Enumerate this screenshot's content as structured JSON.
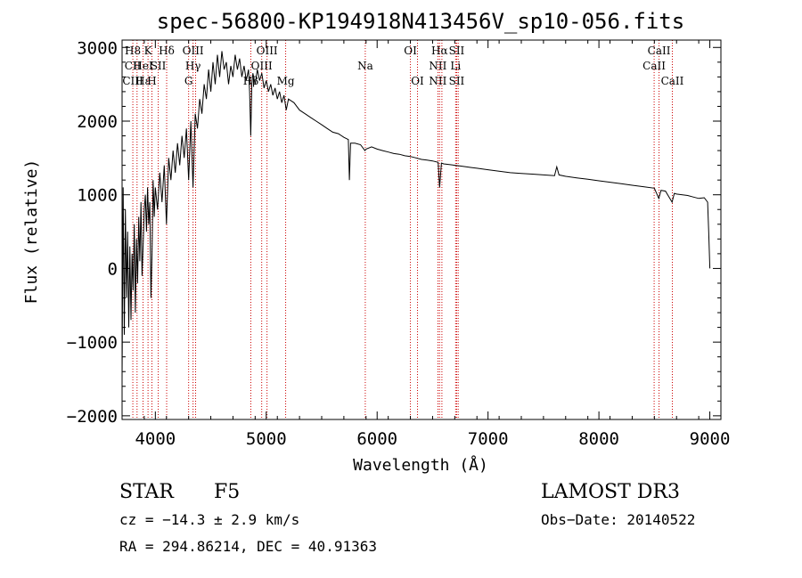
{
  "chart_data": {
    "type": "line",
    "title": "spec-56800-KP194918N413456V_sp10-056.fits",
    "xlabel": "Wavelength (Å)",
    "ylabel": "Flux (relative)",
    "xlim": [
      3700,
      9100
    ],
    "ylim": [
      -2050,
      3100
    ],
    "xticks": [
      4000,
      5000,
      6000,
      7000,
      8000,
      9000
    ],
    "yticks": [
      -2000,
      -1000,
      0,
      1000,
      2000,
      3000
    ],
    "grid": false,
    "line_color": "#000000",
    "marker_color": "#cc0000",
    "spectrum_points": [
      [
        3700,
        -1500
      ],
      [
        3710,
        1100
      ],
      [
        3720,
        -900
      ],
      [
        3730,
        800
      ],
      [
        3740,
        -400
      ],
      [
        3750,
        500
      ],
      [
        3760,
        -800
      ],
      [
        3770,
        300
      ],
      [
        3780,
        -700
      ],
      [
        3790,
        200
      ],
      [
        3800,
        -300
      ],
      [
        3810,
        600
      ],
      [
        3820,
        -600
      ],
      [
        3830,
        400
      ],
      [
        3840,
        -200
      ],
      [
        3850,
        700
      ],
      [
        3860,
        100
      ],
      [
        3870,
        900
      ],
      [
        3880,
        -100
      ],
      [
        3890,
        300
      ],
      [
        3900,
        800
      ],
      [
        3910,
        1000
      ],
      [
        3920,
        500
      ],
      [
        3930,
        1100
      ],
      [
        3940,
        600
      ],
      [
        3950,
        900
      ],
      [
        3960,
        -400
      ],
      [
        3970,
        200
      ],
      [
        3980,
        1200
      ],
      [
        3990,
        700
      ],
      [
        4000,
        1100
      ],
      [
        4020,
        800
      ],
      [
        4040,
        1300
      ],
      [
        4060,
        900
      ],
      [
        4080,
        1400
      ],
      [
        4100,
        600
      ],
      [
        4120,
        1500
      ],
      [
        4140,
        1200
      ],
      [
        4160,
        1600
      ],
      [
        4180,
        1300
      ],
      [
        4200,
        1700
      ],
      [
        4220,
        1400
      ],
      [
        4240,
        1800
      ],
      [
        4260,
        1500
      ],
      [
        4280,
        1900
      ],
      [
        4300,
        1200
      ],
      [
        4320,
        2000
      ],
      [
        4340,
        1100
      ],
      [
        4360,
        2100
      ],
      [
        4380,
        1900
      ],
      [
        4400,
        2300
      ],
      [
        4420,
        2100
      ],
      [
        4440,
        2500
      ],
      [
        4460,
        2300
      ],
      [
        4480,
        2700
      ],
      [
        4500,
        2400
      ],
      [
        4520,
        2800
      ],
      [
        4540,
        2500
      ],
      [
        4560,
        2900
      ],
      [
        4580,
        2600
      ],
      [
        4600,
        2950
      ],
      [
        4620,
        2700
      ],
      [
        4640,
        2800
      ],
      [
        4660,
        2500
      ],
      [
        4680,
        2750
      ],
      [
        4700,
        2600
      ],
      [
        4720,
        2900
      ],
      [
        4740,
        2700
      ],
      [
        4760,
        2850
      ],
      [
        4780,
        2600
      ],
      [
        4800,
        2750
      ],
      [
        4820,
        2550
      ],
      [
        4840,
        2700
      ],
      [
        4850,
        2400
      ],
      [
        4860,
        1800
      ],
      [
        4870,
        2500
      ],
      [
        4880,
        2650
      ],
      [
        4900,
        2500
      ],
      [
        4920,
        2700
      ],
      [
        4940,
        2550
      ],
      [
        4960,
        2650
      ],
      [
        4980,
        2450
      ],
      [
        5000,
        2550
      ],
      [
        5020,
        2400
      ],
      [
        5040,
        2500
      ],
      [
        5060,
        2350
      ],
      [
        5080,
        2450
      ],
      [
        5100,
        2300
      ],
      [
        5120,
        2400
      ],
      [
        5140,
        2250
      ],
      [
        5160,
        2350
      ],
      [
        5180,
        2150
      ],
      [
        5200,
        2300
      ],
      [
        5250,
        2250
      ],
      [
        5300,
        2150
      ],
      [
        5350,
        2100
      ],
      [
        5400,
        2050
      ],
      [
        5450,
        2000
      ],
      [
        5500,
        1950
      ],
      [
        5550,
        1900
      ],
      [
        5600,
        1850
      ],
      [
        5650,
        1830
      ],
      [
        5700,
        1780
      ],
      [
        5740,
        1750
      ],
      [
        5750,
        1200
      ],
      [
        5760,
        1700
      ],
      [
        5800,
        1700
      ],
      [
        5850,
        1680
      ],
      [
        5890,
        1600
      ],
      [
        5900,
        1620
      ],
      [
        5950,
        1650
      ],
      [
        6000,
        1620
      ],
      [
        6050,
        1600
      ],
      [
        6100,
        1580
      ],
      [
        6150,
        1560
      ],
      [
        6200,
        1550
      ],
      [
        6250,
        1530
      ],
      [
        6300,
        1520
      ],
      [
        6350,
        1500
      ],
      [
        6400,
        1480
      ],
      [
        6450,
        1470
      ],
      [
        6500,
        1460
      ],
      [
        6550,
        1440
      ],
      [
        6563,
        1100
      ],
      [
        6580,
        1430
      ],
      [
        6600,
        1420
      ],
      [
        6650,
        1410
      ],
      [
        6700,
        1400
      ],
      [
        6750,
        1390
      ],
      [
        6800,
        1380
      ],
      [
        6850,
        1370
      ],
      [
        6900,
        1360
      ],
      [
        6950,
        1350
      ],
      [
        7000,
        1340
      ],
      [
        7100,
        1320
      ],
      [
        7200,
        1300
      ],
      [
        7300,
        1290
      ],
      [
        7400,
        1280
      ],
      [
        7500,
        1270
      ],
      [
        7600,
        1260
      ],
      [
        7620,
        1380
      ],
      [
        7640,
        1270
      ],
      [
        7700,
        1250
      ],
      [
        7800,
        1230
      ],
      [
        7900,
        1210
      ],
      [
        8000,
        1190
      ],
      [
        8100,
        1170
      ],
      [
        8200,
        1150
      ],
      [
        8300,
        1130
      ],
      [
        8400,
        1110
      ],
      [
        8500,
        1090
      ],
      [
        8540,
        950
      ],
      [
        8560,
        1060
      ],
      [
        8600,
        1050
      ],
      [
        8660,
        900
      ],
      [
        8680,
        1020
      ],
      [
        8700,
        1010
      ],
      [
        8800,
        990
      ],
      [
        8850,
        970
      ],
      [
        8900,
        950
      ],
      [
        8950,
        960
      ],
      [
        8980,
        900
      ],
      [
        8990,
        500
      ],
      [
        9000,
        0
      ]
    ],
    "line_markers": [
      {
        "x": 3797,
        "labels": [
          "H8",
          "CII",
          "CIII"
        ]
      },
      {
        "x": 3835,
        "labels": [
          "",
          "",
          ""
        ]
      },
      {
        "x": 3889,
        "labels": [
          "",
          "HeI",
          "Hε"
        ]
      },
      {
        "x": 3934,
        "labels": [
          "K",
          "",
          ""
        ]
      },
      {
        "x": 3969,
        "labels": [
          "",
          "",
          "H"
        ]
      },
      {
        "x": 4026,
        "labels": [
          "",
          "SII",
          ""
        ]
      },
      {
        "x": 4102,
        "labels": [
          "Hδ",
          "",
          ""
        ]
      },
      {
        "x": 4300,
        "labels": [
          "",
          "",
          "G"
        ]
      },
      {
        "x": 4340,
        "labels": [
          "OIII",
          "Hγ",
          ""
        ]
      },
      {
        "x": 4363,
        "labels": [
          "",
          "",
          ""
        ]
      },
      {
        "x": 4861,
        "labels": [
          "",
          "",
          "Hβ"
        ]
      },
      {
        "x": 4959,
        "labels": [
          "",
          "OIII",
          ""
        ]
      },
      {
        "x": 5007,
        "labels": [
          "OIII",
          "",
          ""
        ]
      },
      {
        "x": 5175,
        "labels": [
          "",
          "",
          "Mg"
        ]
      },
      {
        "x": 5893,
        "labels": [
          "",
          "Na",
          ""
        ]
      },
      {
        "x": 6300,
        "labels": [
          "OI",
          "",
          ""
        ]
      },
      {
        "x": 6364,
        "labels": [
          "",
          "",
          "OI"
        ]
      },
      {
        "x": 6548,
        "labels": [
          "",
          "NII",
          "NII"
        ]
      },
      {
        "x": 6563,
        "labels": [
          "Hα",
          "",
          ""
        ]
      },
      {
        "x": 6584,
        "labels": [
          "",
          "",
          ""
        ]
      },
      {
        "x": 6708,
        "labels": [
          "",
          "Li",
          ""
        ]
      },
      {
        "x": 6717,
        "labels": [
          "SII",
          "",
          "SII"
        ]
      },
      {
        "x": 6731,
        "labels": [
          "",
          "",
          ""
        ]
      },
      {
        "x": 8498,
        "labels": [
          "",
          "CaII",
          ""
        ]
      },
      {
        "x": 8542,
        "labels": [
          "CaII",
          "",
          ""
        ]
      },
      {
        "x": 8662,
        "labels": [
          "",
          "",
          "CaII"
        ]
      }
    ]
  },
  "info": {
    "class": "STAR",
    "subclass": "F5",
    "survey": "LAMOST DR3",
    "cz": "cz = −14.3 ± 2.9 km/s",
    "obsdate": "Obs−Date: 20140522",
    "coords": "RA = 294.86214, DEC =  40.91363"
  }
}
